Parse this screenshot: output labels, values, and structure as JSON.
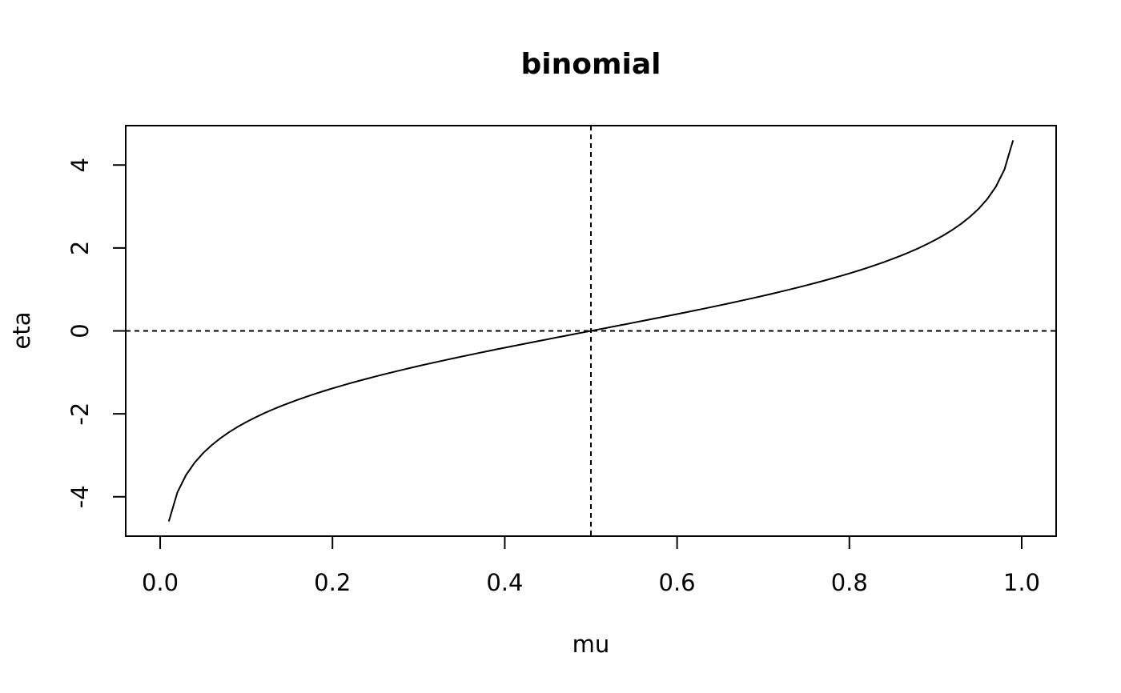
{
  "chart_data": {
    "type": "line",
    "title": "binomial",
    "xlabel": "mu",
    "ylabel": "eta",
    "xlim": [
      -0.04,
      1.04
    ],
    "ylim": [
      -4.95,
      4.95
    ],
    "x_ticks": [
      0.0,
      0.2,
      0.4,
      0.6,
      0.8,
      1.0
    ],
    "x_tick_labels": [
      "0.0",
      "0.2",
      "0.4",
      "0.6",
      "0.8",
      "1.0"
    ],
    "y_ticks": [
      -4,
      -2,
      0,
      2,
      4
    ],
    "y_tick_labels": [
      "-4",
      "-2",
      "0",
      "2",
      "4"
    ],
    "grid": false,
    "reference_lines": [
      {
        "orientation": "vertical",
        "value": 0.5,
        "style": "dashed"
      },
      {
        "orientation": "horizontal",
        "value": 0,
        "style": "dashed"
      }
    ],
    "series": [
      {
        "line_color": "#000000",
        "x": [
          0.01,
          0.02,
          0.03,
          0.04,
          0.05,
          0.06,
          0.07,
          0.08,
          0.09,
          0.1,
          0.11,
          0.12,
          0.13,
          0.14,
          0.15,
          0.16,
          0.17,
          0.18,
          0.19,
          0.2,
          0.21,
          0.22,
          0.23,
          0.24,
          0.25,
          0.26,
          0.27,
          0.28,
          0.29,
          0.3,
          0.31,
          0.32,
          0.33,
          0.34,
          0.35,
          0.36,
          0.37,
          0.38,
          0.39,
          0.4,
          0.41,
          0.42,
          0.43,
          0.44,
          0.45,
          0.46,
          0.47,
          0.48,
          0.49,
          0.5,
          0.51,
          0.52,
          0.53,
          0.54,
          0.55,
          0.56,
          0.57,
          0.58,
          0.59,
          0.6,
          0.61,
          0.62,
          0.63,
          0.64,
          0.65,
          0.66,
          0.67,
          0.68,
          0.69,
          0.7,
          0.71,
          0.72,
          0.73,
          0.74,
          0.75,
          0.76,
          0.77,
          0.78,
          0.79,
          0.8,
          0.81,
          0.82,
          0.83,
          0.84,
          0.85,
          0.86,
          0.87,
          0.88,
          0.89,
          0.9,
          0.91,
          0.92,
          0.93,
          0.94,
          0.95,
          0.96,
          0.97,
          0.98,
          0.99
        ],
        "y": [
          -4.595,
          -3.892,
          -3.476,
          -3.178,
          -2.944,
          -2.752,
          -2.587,
          -2.442,
          -2.314,
          -2.197,
          -2.091,
          -1.992,
          -1.901,
          -1.815,
          -1.735,
          -1.658,
          -1.586,
          -1.516,
          -1.45,
          -1.386,
          -1.325,
          -1.266,
          -1.208,
          -1.153,
          -1.099,
          -1.046,
          -0.995,
          -0.944,
          -0.895,
          -0.847,
          -0.8,
          -0.754,
          -0.708,
          -0.663,
          -0.619,
          -0.575,
          -0.532,
          -0.49,
          -0.447,
          -0.405,
          -0.364,
          -0.323,
          -0.282,
          -0.241,
          -0.201,
          -0.16,
          -0.12,
          -0.08,
          -0.04,
          0.0,
          0.04,
          0.08,
          0.12,
          0.16,
          0.201,
          0.241,
          0.282,
          0.323,
          0.364,
          0.405,
          0.447,
          0.49,
          0.532,
          0.575,
          0.619,
          0.663,
          0.708,
          0.754,
          0.8,
          0.847,
          0.895,
          0.944,
          0.995,
          1.046,
          1.099,
          1.153,
          1.208,
          1.266,
          1.325,
          1.386,
          1.45,
          1.516,
          1.586,
          1.658,
          1.735,
          1.815,
          1.901,
          1.992,
          2.091,
          2.197,
          2.314,
          2.442,
          2.587,
          2.752,
          2.944,
          3.178,
          3.476,
          3.892,
          4.595
        ]
      }
    ]
  }
}
